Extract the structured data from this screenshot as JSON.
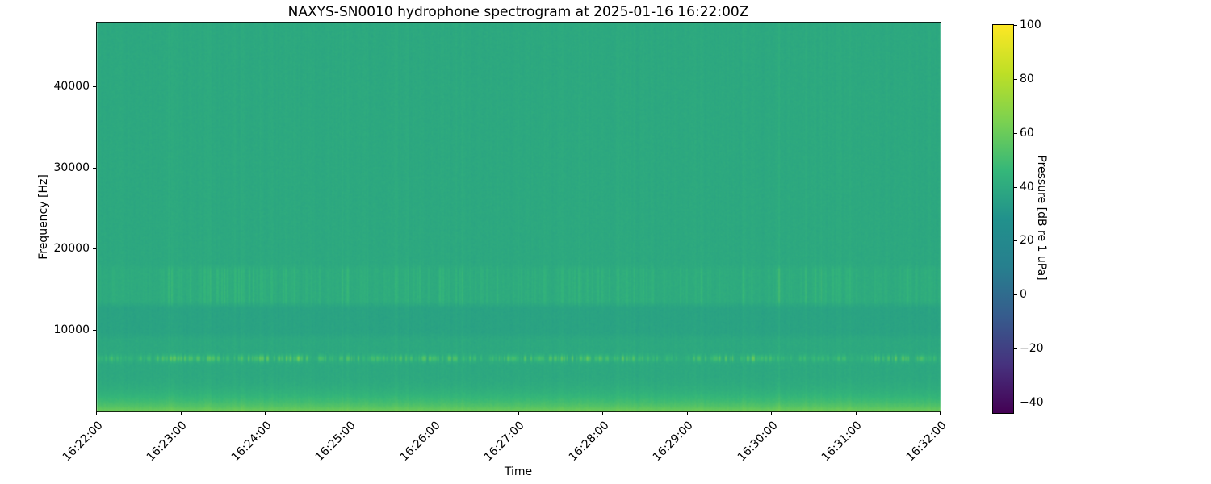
{
  "chart": {
    "title": "NAXYS-SN0010 hydrophone spectrogram at 2025-01-16 16:22:00Z",
    "xlabel": "Time",
    "ylabel": "Frequency [Hz]",
    "x_tick_labels": [
      "16:22:00",
      "16:23:00",
      "16:24:00",
      "16:25:00",
      "16:26:00",
      "16:27:00",
      "16:28:00",
      "16:29:00",
      "16:30:00",
      "16:31:00",
      "16:32:00"
    ],
    "y_ticks": [
      {
        "value": 10000,
        "label": "10000"
      },
      {
        "value": 20000,
        "label": "20000"
      },
      {
        "value": 30000,
        "label": "30000"
      },
      {
        "value": 40000,
        "label": "40000"
      }
    ],
    "colorbar": {
      "label": "Pressure [dB re 1 uPa]",
      "vmin": -43.5,
      "vmax": 100.5,
      "colormap": "viridis",
      "ticks": [
        {
          "value": 100,
          "label": "100"
        },
        {
          "value": 80,
          "label": "80"
        },
        {
          "value": 60,
          "label": "60"
        },
        {
          "value": 40,
          "label": "40"
        },
        {
          "value": 20,
          "label": "20"
        },
        {
          "value": 0,
          "label": "0"
        },
        {
          "value": -20,
          "label": "−20"
        },
        {
          "value": -40,
          "label": "−40"
        }
      ],
      "stops": [
        [
          0.0,
          "#440154"
        ],
        [
          0.125,
          "#46327e"
        ],
        [
          0.25,
          "#365c8d"
        ],
        [
          0.375,
          "#277f8e"
        ],
        [
          0.5,
          "#21918c"
        ],
        [
          0.625,
          "#35b779"
        ],
        [
          0.75,
          "#7ad151"
        ],
        [
          0.875,
          "#bddf26"
        ],
        [
          1.0,
          "#fde725"
        ]
      ]
    }
  },
  "chart_data": {
    "type": "heatmap",
    "subtype": "spectrogram",
    "title": "NAXYS-SN0010 hydrophone spectrogram at 2025-01-16 16:22:00Z",
    "xlabel": "Time",
    "ylabel": "Frequency [Hz]",
    "x_range": [
      "16:22:00",
      "16:32:00"
    ],
    "x_tick_labels": [
      "16:22:00",
      "16:23:00",
      "16:24:00",
      "16:25:00",
      "16:26:00",
      "16:27:00",
      "16:28:00",
      "16:29:00",
      "16:30:00",
      "16:31:00",
      "16:32:00"
    ],
    "y_range_hz": [
      0,
      48000
    ],
    "y_tick_values": [
      10000,
      20000,
      30000,
      40000
    ],
    "colorbar": {
      "label": "Pressure [dB re 1 uPa]",
      "tick_values": [
        100,
        80,
        60,
        40,
        20,
        0,
        -20,
        -40
      ],
      "vmin": -43.5,
      "vmax": 100.5,
      "colormap": "viridis"
    },
    "background_level_db": 40,
    "features": [
      {
        "name": "broadband-background",
        "freq_hz": [
          0,
          48000
        ],
        "level_db": 40,
        "pattern": "uniform teal-green field"
      },
      {
        "name": "low-frequency-noise-shelf",
        "freq_hz": [
          0,
          4500
        ],
        "peak_boost_db": 21,
        "pattern": "bright green strip along bottom edge, fading upward"
      },
      {
        "name": "tonal-pulse-train",
        "freq_hz": [
          6100,
          6900
        ],
        "center_hz": 6500,
        "boost_db": 28,
        "pattern": "intermittent bright light-green horizontal dashes"
      },
      {
        "name": "quiet-band",
        "freq_hz": [
          9700,
          12700
        ],
        "boost_db": -2.6,
        "pattern": "slightly darker teal band"
      },
      {
        "name": "mid-band-click-streaks",
        "freq_hz": [
          13600,
          17400
        ],
        "boost_db": 12,
        "pattern": "faint light-green vertical streaks"
      },
      {
        "name": "broadband-transients",
        "freq_hz": [
          0,
          48000
        ],
        "boost_db": 4,
        "pattern": "full-height faint vertical streaks in irregular clusters"
      }
    ],
    "render": {
      "seed": 1337,
      "base_db": 40,
      "noise_db": 1.5,
      "col_wobble_db": 1.6,
      "streak_boost_db": 2.8,
      "tonal_boost_db": 27,
      "mid_boost_db": 11,
      "quiet_dip_db": 2.6,
      "low_shelf_db": 17
    }
  }
}
